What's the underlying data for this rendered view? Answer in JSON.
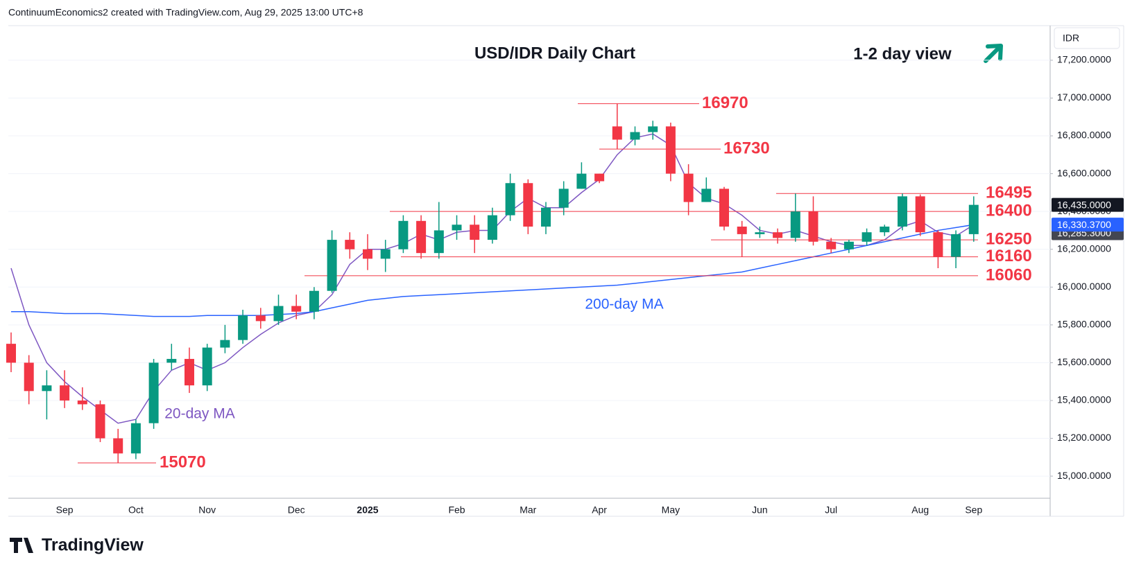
{
  "header": "ContinuumEconomics2 created with TradingView.com, Aug 29, 2025 13:00 UTC+8",
  "logo": "TradingView",
  "chart_data": {
    "type": "candlestick",
    "title": "USD/IDR Daily Chart",
    "subtitle": "1-2 day view",
    "currency": "IDR",
    "categories": [
      null,
      null,
      null,
      "Sep",
      null,
      null,
      null,
      "Oct",
      null,
      null,
      null,
      "Nov",
      null,
      null,
      null,
      null,
      "Dec",
      null,
      null,
      null,
      "2025",
      null,
      null,
      null,
      null,
      "Feb",
      null,
      null,
      null,
      "Mar",
      null,
      null,
      null,
      "Apr",
      null,
      null,
      null,
      "May",
      null,
      null,
      null,
      null,
      "Jun",
      null,
      null,
      null,
      "Jul",
      null,
      null,
      null,
      null,
      "Aug",
      null,
      null,
      "Sep"
    ],
    "open": [
      15700,
      15600,
      15450,
      15480,
      15400,
      15380,
      15200,
      15120,
      15280,
      15600,
      15620,
      15480,
      15680,
      15720,
      15850,
      15820,
      15900,
      15870,
      15980,
      16250,
      16200,
      16150,
      16200,
      16350,
      16180,
      16300,
      16330,
      16250,
      16380,
      16550,
      16320,
      16420,
      16520,
      16600,
      16850,
      16780,
      16820,
      16850,
      16600,
      16450,
      16520,
      16320,
      16280,
      16290,
      16260,
      16400,
      16240,
      16200,
      16240,
      16290,
      16320,
      16480,
      16290,
      16160,
      16280
    ],
    "high": [
      15760,
      15640,
      15560,
      15560,
      15470,
      15400,
      15250,
      15300,
      15620,
      15700,
      15680,
      15700,
      15800,
      15880,
      15890,
      15960,
      15960,
      16000,
      16300,
      16290,
      16280,
      16250,
      16380,
      16380,
      16450,
      16380,
      16380,
      16420,
      16600,
      16570,
      16450,
      16560,
      16660,
      16600,
      16970,
      16850,
      16880,
      16870,
      16650,
      16580,
      16530,
      16350,
      16320,
      16310,
      16495,
      16480,
      16260,
      16250,
      16310,
      16330,
      16495,
      16490,
      16300,
      16300,
      16480
    ],
    "low": [
      15550,
      15380,
      15300,
      15360,
      15350,
      15180,
      15070,
      15090,
      15250,
      15560,
      15440,
      15450,
      15650,
      15700,
      15780,
      15800,
      15830,
      15830,
      15970,
      16150,
      16090,
      16080,
      16180,
      16150,
      16150,
      16250,
      16180,
      16230,
      16350,
      16280,
      16280,
      16380,
      16520,
      16550,
      16730,
      16750,
      16780,
      16560,
      16380,
      16450,
      16300,
      16160,
      16260,
      16230,
      16240,
      16220,
      16180,
      16180,
      16220,
      16270,
      16300,
      16270,
      16100,
      16100,
      16240
    ],
    "close": [
      15600,
      15450,
      15480,
      15400,
      15380,
      15200,
      15120,
      15280,
      15600,
      15620,
      15480,
      15680,
      15720,
      15850,
      15820,
      15900,
      15870,
      15980,
      16250,
      16200,
      16150,
      16200,
      16350,
      16180,
      16300,
      16330,
      16250,
      16380,
      16550,
      16320,
      16420,
      16520,
      16600,
      16560,
      16780,
      16820,
      16850,
      16600,
      16450,
      16520,
      16320,
      16280,
      16290,
      16260,
      16400,
      16240,
      16200,
      16240,
      16290,
      16320,
      16480,
      16290,
      16160,
      16280,
      16435
    ],
    "up_color": "#089981",
    "down_color": "#f23645",
    "series": [
      {
        "name": "20-day MA",
        "color": "#7e57c2",
        "values": [
          16100,
          15800,
          15600,
          15500,
          15420,
          15350,
          15280,
          15300,
          15450,
          15560,
          15600,
          15560,
          15600,
          15680,
          15750,
          15810,
          15850,
          15870,
          15960,
          16120,
          16200,
          16200,
          16230,
          16280,
          16250,
          16290,
          16300,
          16300,
          16400,
          16470,
          16420,
          16420,
          16500,
          16570,
          16700,
          16790,
          16810,
          16750,
          16550,
          16470,
          16440,
          16380,
          16300,
          16280,
          16300,
          16270,
          16240,
          16220,
          16220,
          16250,
          16320,
          16350,
          16290,
          16270,
          16330
        ]
      },
      {
        "name": "200-day MA",
        "color": "#2962ff",
        "values": [
          15870,
          15870,
          15865,
          15860,
          15860,
          15860,
          15855,
          15850,
          15845,
          15845,
          15845,
          15850,
          15850,
          15850,
          15850,
          15855,
          15860,
          15870,
          15890,
          15910,
          15930,
          15940,
          15950,
          15955,
          15960,
          15965,
          15970,
          15975,
          15980,
          15985,
          15990,
          15995,
          16000,
          16005,
          16010,
          16020,
          16030,
          16040,
          16050,
          16060,
          16070,
          16080,
          16100,
          16120,
          16140,
          16160,
          16180,
          16200,
          16220,
          16240,
          16260,
          16280,
          16300,
          16315,
          16330
        ]
      }
    ],
    "levels": [
      16970,
      16730,
      16495,
      16400,
      16250,
      16160,
      16060,
      15070
    ],
    "level_color": "#f23645",
    "price_tags": [
      {
        "value": 16435,
        "label": "16,435.0000"
      },
      {
        "value": 16330.37,
        "label": "16,330.3700"
      },
      {
        "value": 16285.3,
        "label": "16,285.3000"
      }
    ],
    "ylim": [
      14883,
      17383
    ],
    "yticks": [
      {
        "value": 15000,
        "label": "15,000.0000"
      },
      {
        "value": 15200,
        "label": "15,200.0000"
      },
      {
        "value": 15400,
        "label": "15,400.0000"
      },
      {
        "value": 15600,
        "label": "15,600.0000"
      },
      {
        "value": 15800,
        "label": "15,800.0000"
      },
      {
        "value": 16000,
        "label": "16,000.0000"
      },
      {
        "value": 16200,
        "label": "16,200.0000"
      },
      {
        "value": 16400,
        "label": "16,400.0000"
      },
      {
        "value": 16600,
        "label": "16,600.0000"
      },
      {
        "value": 16800,
        "label": "16,800.0000"
      },
      {
        "value": 17000,
        "label": "17,000.0000"
      },
      {
        "value": 17200,
        "label": "17,200.0000"
      }
    ],
    "grid": true
  }
}
